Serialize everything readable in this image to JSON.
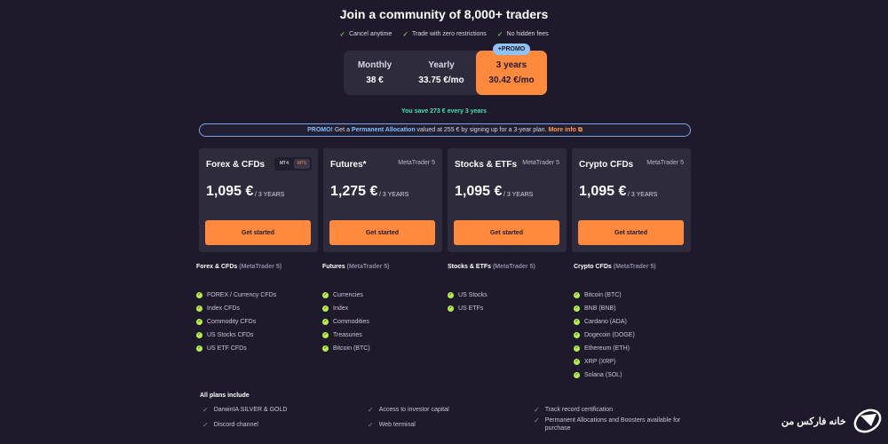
{
  "header": {
    "title": "Join a community of 8,000+ traders",
    "benefits": [
      "Cancel anytime",
      "Trade with zero restrictions",
      "No hidden fees"
    ]
  },
  "billing": {
    "options": [
      {
        "label": "Monthly",
        "price": "38 €"
      },
      {
        "label": "Yearly",
        "price": "33.75 €/mo"
      },
      {
        "label": "3 years",
        "price": "30.42 €/mo"
      }
    ],
    "selected": "3 years",
    "promo_badge": "+PROMO",
    "savings": "You save 273 € every 3 years"
  },
  "promo_banner": {
    "prefix": "PROMO!",
    "text1": " Get a ",
    "highlight": "Permanent Allocation",
    "text2": " valued at 255 € by signing up for a 3-year plan. ",
    "link": "More info"
  },
  "cards": [
    {
      "title": "Forex & CFDs",
      "toggle": [
        "MT4",
        "MT5"
      ],
      "price": "1,095 €",
      "period": "/ 3 YEARS",
      "button": "Get started"
    },
    {
      "title": "Futures*",
      "platform": "MetaTrader 5",
      "price": "1,275 €",
      "period": "/ 3 YEARS",
      "button": "Get started"
    },
    {
      "title": "Stocks & ETFs",
      "platform": "MetaTrader 5",
      "price": "1,095 €",
      "period": "/ 3 YEARS",
      "button": "Get started"
    },
    {
      "title": "Crypto CFDs",
      "platform": "MetaTrader 5",
      "price": "1,095 €",
      "period": "/ 3 YEARS",
      "button": "Get started"
    }
  ],
  "features": [
    {
      "title": "Forex & CFDs",
      "sub": "(MetaTrader 5)",
      "items": [
        "FOREX / Currency CFDs",
        "Index CFDs",
        "Commodity CFDs",
        "US Stocks CFDs",
        "US ETF CFDs"
      ]
    },
    {
      "title": "Futures",
      "sub": "(MetaTrader 5)",
      "items": [
        "Currencies",
        "Index",
        "Commodities",
        "Treasuries",
        "Bitcoin (BTC)"
      ]
    },
    {
      "title": "Stocks & ETFs",
      "sub": "(MetaTrader 5)",
      "items": [
        "US Stocks",
        "US ETFs"
      ]
    },
    {
      "title": "Crypto CFDs",
      "sub": "(MetaTrader 5)",
      "items": [
        "Bitcoin (BTC)",
        "BNB (BNB)",
        "Cardano (ADA)",
        "Dogecoin (DOGE)",
        "Ethereum (ETH)",
        "XRP (XRP)",
        "Solana (SOL)"
      ]
    }
  ],
  "all_plans": {
    "title": "All plans include",
    "items": [
      "DarwinIA SILVER & GOLD",
      "Access to investor capital",
      "Track record certification",
      "Discord channel",
      "Web terminal",
      "Permanent Allocations and Boosters available for purchase"
    ]
  },
  "watermark": {
    "text": "خانه فارکس من"
  },
  "colors": {
    "background": "#1e1a2b",
    "card": "#2e2b3c",
    "accent": "#ff8a3d",
    "check": "#b6ef4a",
    "savings": "#3fe0b0"
  }
}
